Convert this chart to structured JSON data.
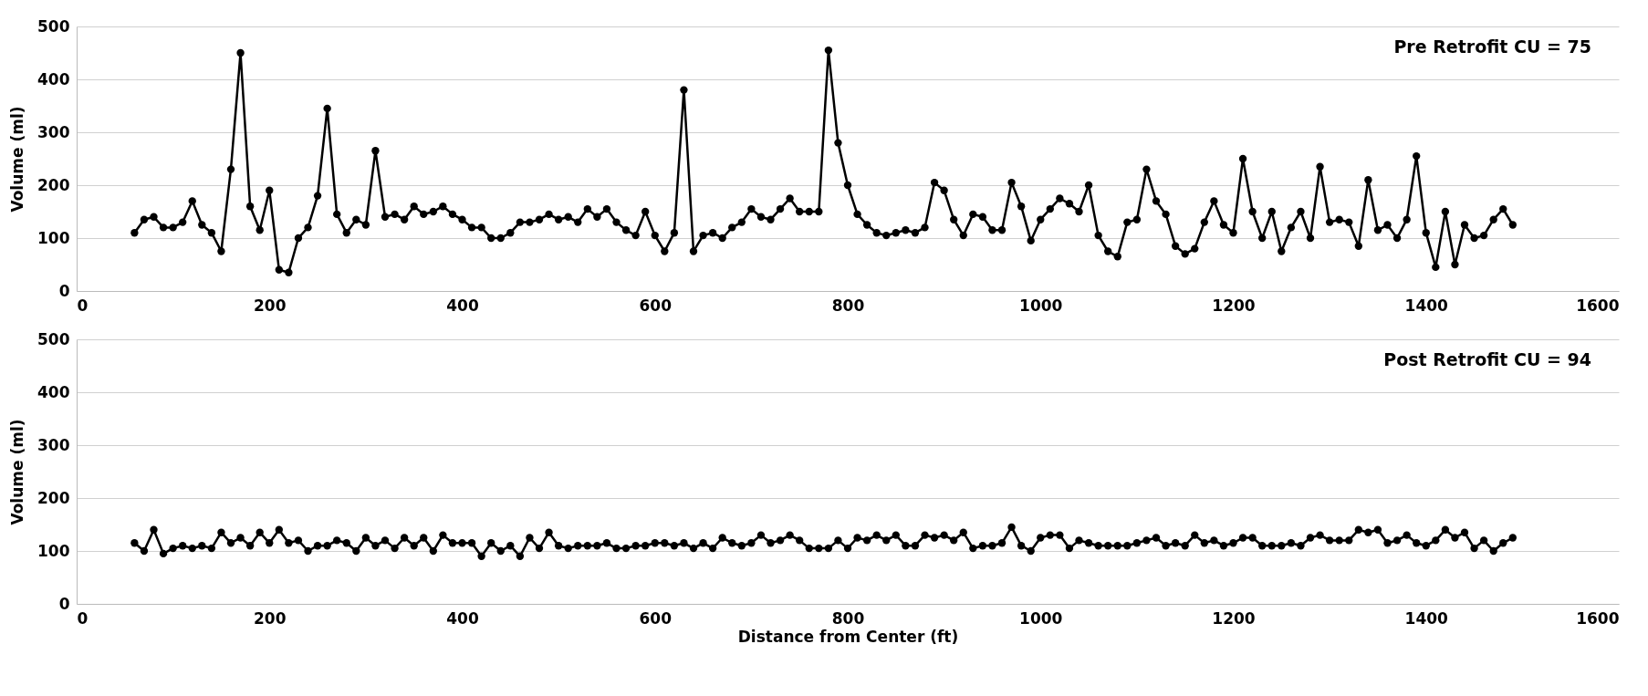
{
  "chart_data": [
    {
      "type": "line",
      "ylabel": "Volume (ml)",
      "annotations": [
        "Pre Retrofit CU = 75"
      ],
      "xlim": [
        0,
        1600
      ],
      "xticks": [
        0,
        200,
        400,
        600,
        800,
        1000,
        1200,
        1400,
        1600
      ],
      "ylim": [
        0,
        500
      ],
      "yticks": [
        0,
        100,
        200,
        300,
        400,
        500
      ],
      "grid": "y",
      "marker": "circle",
      "line_style": "solid",
      "x": [
        60,
        70,
        80,
        90,
        100,
        110,
        120,
        130,
        140,
        150,
        160,
        170,
        180,
        190,
        200,
        210,
        220,
        230,
        240,
        250,
        260,
        270,
        280,
        290,
        300,
        310,
        320,
        330,
        340,
        350,
        360,
        370,
        380,
        390,
        400,
        410,
        420,
        430,
        440,
        450,
        460,
        470,
        480,
        490,
        500,
        510,
        520,
        530,
        540,
        550,
        560,
        570,
        580,
        590,
        600,
        610,
        620,
        630,
        640,
        650,
        660,
        670,
        680,
        690,
        700,
        710,
        720,
        730,
        740,
        750,
        760,
        770,
        780,
        790,
        800,
        810,
        820,
        830,
        840,
        850,
        860,
        870,
        880,
        890,
        900,
        910,
        920,
        930,
        940,
        950,
        960,
        970,
        980,
        990,
        1000,
        1010,
        1020,
        1030,
        1040,
        1050,
        1060,
        1070,
        1080,
        1090,
        1100,
        1110,
        1120,
        1130,
        1140,
        1150,
        1160,
        1170,
        1180,
        1190,
        1200,
        1210,
        1220,
        1230,
        1240,
        1250,
        1260,
        1270,
        1280,
        1290,
        1300,
        1310,
        1320,
        1330,
        1340,
        1350,
        1360,
        1370,
        1380,
        1390,
        1400,
        1410,
        1420,
        1430,
        1440,
        1450,
        1460,
        1470,
        1480,
        1490
      ],
      "series": [
        {
          "color": "#000000",
          "values": [
            110,
            135,
            140,
            120,
            120,
            130,
            170,
            125,
            110,
            75,
            230,
            450,
            160,
            115,
            190,
            40,
            35,
            100,
            120,
            180,
            345,
            145,
            110,
            135,
            125,
            265,
            140,
            145,
            135,
            160,
            145,
            150,
            160,
            145,
            135,
            120,
            120,
            100,
            100,
            110,
            130,
            130,
            135,
            145,
            135,
            140,
            130,
            155,
            140,
            155,
            130,
            115,
            105,
            150,
            105,
            75,
            110,
            380,
            75,
            105,
            110,
            100,
            120,
            130,
            155,
            140,
            135,
            155,
            175,
            150,
            150,
            150,
            455,
            280,
            200,
            145,
            125,
            110,
            105,
            110,
            115,
            110,
            120,
            205,
            190,
            135,
            105,
            145,
            140,
            115,
            115,
            205,
            160,
            95,
            135,
            155,
            175,
            165,
            150,
            200,
            105,
            75,
            65,
            130,
            135,
            230,
            170,
            145,
            85,
            70,
            80,
            130,
            170,
            125,
            110,
            250,
            150,
            100,
            150,
            75,
            120,
            150,
            100,
            235,
            130,
            135,
            130,
            85,
            210,
            115,
            125,
            100,
            135,
            255,
            110,
            45,
            150,
            50,
            125,
            100,
            105,
            135,
            155,
            125
          ]
        }
      ]
    },
    {
      "type": "line",
      "xlabel": "Distance from Center (ft)",
      "ylabel": "Volume (ml)",
      "annotations": [
        "Post Retrofit CU = 94"
      ],
      "xlim": [
        0,
        1600
      ],
      "xticks": [
        0,
        200,
        400,
        600,
        800,
        1000,
        1200,
        1400,
        1600
      ],
      "ylim": [
        0,
        500
      ],
      "yticks": [
        0,
        100,
        200,
        300,
        400,
        500
      ],
      "grid": "y",
      "marker": "circle",
      "line_style": "solid",
      "x": [
        60,
        70,
        80,
        90,
        100,
        110,
        120,
        130,
        140,
        150,
        160,
        170,
        180,
        190,
        200,
        210,
        220,
        230,
        240,
        250,
        260,
        270,
        280,
        290,
        300,
        310,
        320,
        330,
        340,
        350,
        360,
        370,
        380,
        390,
        400,
        410,
        420,
        430,
        440,
        450,
        460,
        470,
        480,
        490,
        500,
        510,
        520,
        530,
        540,
        550,
        560,
        570,
        580,
        590,
        600,
        610,
        620,
        630,
        640,
        650,
        660,
        670,
        680,
        690,
        700,
        710,
        720,
        730,
        740,
        750,
        760,
        770,
        780,
        790,
        800,
        810,
        820,
        830,
        840,
        850,
        860,
        870,
        880,
        890,
        900,
        910,
        920,
        930,
        940,
        950,
        960,
        970,
        980,
        990,
        1000,
        1010,
        1020,
        1030,
        1040,
        1050,
        1060,
        1070,
        1080,
        1090,
        1100,
        1110,
        1120,
        1130,
        1140,
        1150,
        1160,
        1170,
        1180,
        1190,
        1200,
        1210,
        1220,
        1230,
        1240,
        1250,
        1260,
        1270,
        1280,
        1290,
        1300,
        1310,
        1320,
        1330,
        1340,
        1350,
        1360,
        1370,
        1380,
        1390,
        1400,
        1410,
        1420,
        1430,
        1440,
        1450,
        1460,
        1470,
        1480,
        1490
      ],
      "series": [
        {
          "color": "#000000",
          "values": [
            115,
            100,
            140,
            95,
            105,
            110,
            105,
            110,
            105,
            135,
            115,
            125,
            110,
            135,
            115,
            140,
            115,
            120,
            100,
            110,
            110,
            120,
            115,
            100,
            125,
            110,
            120,
            105,
            125,
            110,
            125,
            100,
            130,
            115,
            115,
            115,
            90,
            115,
            100,
            110,
            90,
            125,
            105,
            135,
            110,
            105,
            110,
            110,
            110,
            115,
            105,
            105,
            110,
            110,
            115,
            115,
            110,
            115,
            105,
            115,
            105,
            125,
            115,
            110,
            115,
            130,
            115,
            120,
            130,
            120,
            105,
            105,
            105,
            120,
            105,
            125,
            120,
            130,
            120,
            130,
            110,
            110,
            130,
            125,
            130,
            120,
            135,
            105,
            110,
            110,
            115,
            145,
            110,
            100,
            125,
            130,
            130,
            105,
            120,
            115,
            110,
            110,
            110,
            110,
            115,
            120,
            125,
            110,
            115,
            110,
            130,
            115,
            120,
            110,
            115,
            125,
            125,
            110,
            110,
            110,
            115,
            110,
            125,
            130,
            120,
            120,
            120,
            140,
            135,
            140,
            115,
            120,
            130,
            115,
            110,
            120,
            140,
            125,
            135,
            105,
            120,
            100,
            115,
            125
          ]
        }
      ]
    }
  ]
}
